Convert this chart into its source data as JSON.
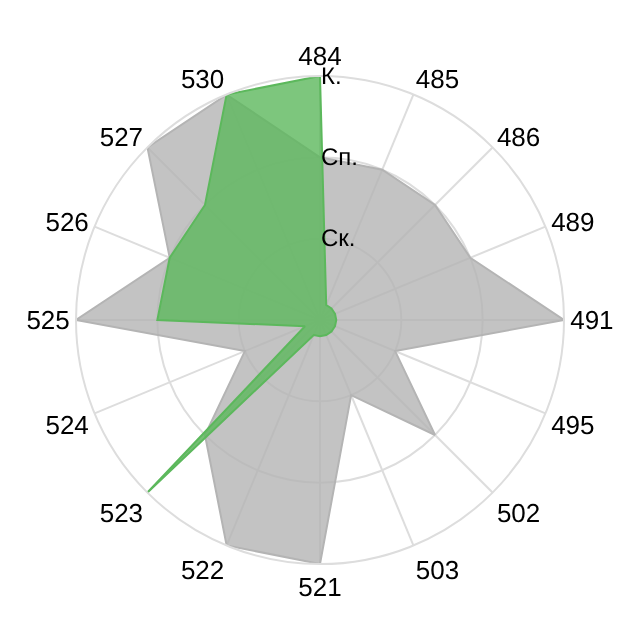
{
  "chart_data": {
    "type": "radar",
    "categories": [
      "484",
      "485",
      "486",
      "489",
      "491",
      "495",
      "502",
      "503",
      "521",
      "522",
      "523",
      "524",
      "525",
      "526",
      "527",
      "530"
    ],
    "series": [
      {
        "color": "#b4b4b4",
        "values": [
          2,
          2,
          2,
          2,
          3,
          1,
          2,
          1,
          3,
          3,
          2,
          1,
          3,
          2,
          3,
          3
        ]
      },
      {
        "color": "#5cb85c",
        "values": [
          3,
          0.2,
          0.2,
          0.2,
          0.2,
          0.2,
          0.2,
          0.2,
          0.2,
          0.2,
          3,
          0.2,
          2,
          2,
          2,
          3
        ]
      }
    ],
    "ylim": [
      0,
      3
    ],
    "yticks": [
      {
        "value": 1,
        "label": "Ск."
      },
      {
        "value": 2,
        "label": "Сп."
      },
      {
        "value": 3,
        "label": "К."
      }
    ],
    "grid": true
  }
}
